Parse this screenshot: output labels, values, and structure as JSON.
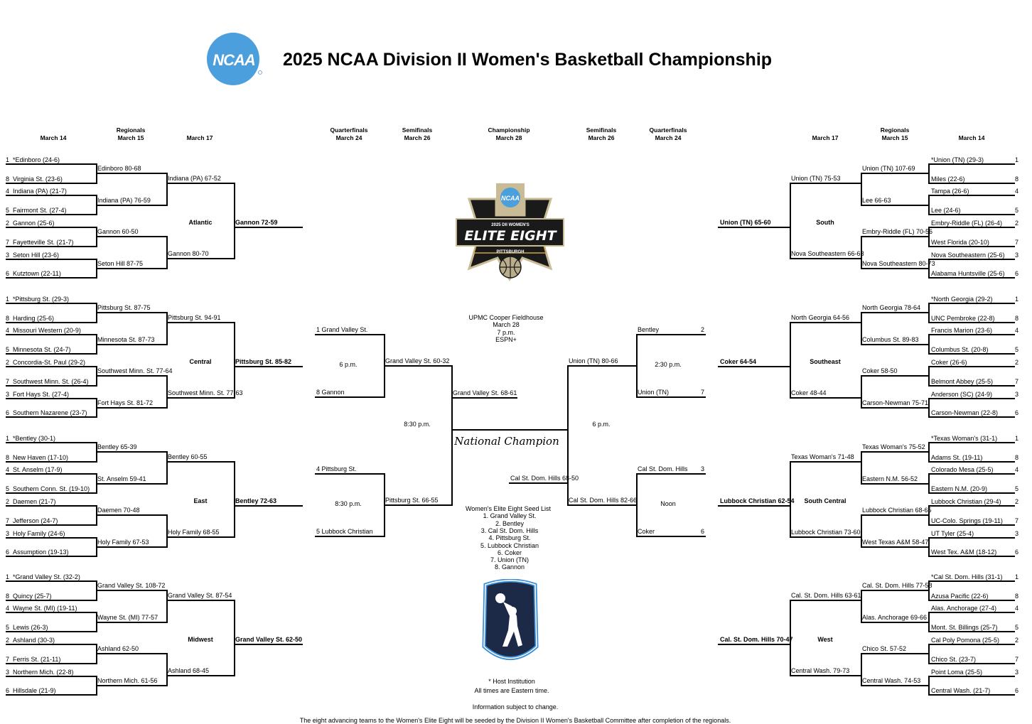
{
  "title": "2025 NCAA Division II Women's Basketball Championship",
  "logos": {
    "ncaa": "NCAA",
    "elite_eight": [
      "2025 DII WOMEN'S",
      "ELITE EIGHT",
      "PITTSBURGH"
    ],
    "colors": {
      "ncaa_blue": "#4a9fdc",
      "gold": "#c9a64b",
      "navy": "#1c2a48"
    }
  },
  "headers": {
    "left_r1": [
      "March 14"
    ],
    "left_r2": [
      "Regionals",
      "March 15"
    ],
    "left_r3": [
      "March 17"
    ],
    "left_qf": [
      "Quarterfinals",
      "March 24"
    ],
    "left_sf": [
      "Semifinals",
      "March 26"
    ],
    "final": [
      "Championship",
      "March 28"
    ],
    "right_sf": [
      "Semifinals",
      "March 26"
    ],
    "right_qf": [
      "Quarterfinals",
      "March 24"
    ],
    "right_r3": [
      "March 17"
    ],
    "right_r2": [
      "Regionals",
      "March 15"
    ],
    "right_r1": [
      "March 14"
    ]
  },
  "left_regions": [
    {
      "name": "Atlantic",
      "teams": [
        {
          "seed": "1",
          "name": "*Edinboro (24-6)"
        },
        {
          "seed": "8",
          "name": "Virginia St. (23-6)"
        },
        {
          "seed": "4",
          "name": "Indiana (PA) (21-7)"
        },
        {
          "seed": "5",
          "name": "Fairmont St. (27-4)"
        },
        {
          "seed": "2",
          "name": "Gannon (25-6)"
        },
        {
          "seed": "7",
          "name": "Fayetteville St. (21-7)"
        },
        {
          "seed": "3",
          "name": "Seton Hill (23-6)"
        },
        {
          "seed": "6",
          "name": "Kutztown (22-11)"
        }
      ],
      "r1": [
        "Edinboro 80-68",
        "Indiana (PA) 76-59",
        "Gannon 60-50",
        "Seton Hill 87-75"
      ],
      "r2": [
        "Indiana (PA) 67-52",
        "Gannon 80-70"
      ],
      "champ": "Gannon 72-59"
    },
    {
      "name": "Central",
      "teams": [
        {
          "seed": "1",
          "name": "*Pittsburg St. (29-3)"
        },
        {
          "seed": "8",
          "name": "Harding (25-6)"
        },
        {
          "seed": "4",
          "name": "Missouri Western (20-9)"
        },
        {
          "seed": "5",
          "name": "Minnesota St. (24-7)"
        },
        {
          "seed": "2",
          "name": "Concordia-St. Paul (29-2)"
        },
        {
          "seed": "7",
          "name": "Southwest Minn. St. (26-4)"
        },
        {
          "seed": "3",
          "name": "Fort Hays St. (27-4)"
        },
        {
          "seed": "6",
          "name": "Southern Nazarene (23-7)"
        }
      ],
      "r1": [
        "Pittsburg St. 87-75",
        "Minnesota St. 87-73",
        "Southwest Minn. St. 77-64",
        "Fort Hays St. 81-72"
      ],
      "r2": [
        "Pittsburg St. 94-91",
        "Southwest Minn. St. 77-63"
      ],
      "champ": "Pittsburg St. 85-82"
    },
    {
      "name": "East",
      "teams": [
        {
          "seed": "1",
          "name": "*Bentley (30-1)"
        },
        {
          "seed": "8",
          "name": "New Haven (17-10)"
        },
        {
          "seed": "4",
          "name": "St. Anselm (17-9)"
        },
        {
          "seed": "5",
          "name": "Southern Conn. St. (19-10)"
        },
        {
          "seed": "2",
          "name": "Daemen (21-7)"
        },
        {
          "seed": "7",
          "name": "Jefferson (24-7)"
        },
        {
          "seed": "3",
          "name": "Holy Family (24-6)"
        },
        {
          "seed": "6",
          "name": "Assumption (19-13)"
        }
      ],
      "r1": [
        "Bentley 65-39",
        "St. Anselm 59-41",
        "Daemen 70-48",
        "Holy Family 67-53"
      ],
      "r2": [
        "Bentley 60-55",
        "Holy Family 68-55"
      ],
      "champ": "Bentley 72-63"
    },
    {
      "name": "Midwest",
      "teams": [
        {
          "seed": "1",
          "name": "*Grand Valley St. (32-2)"
        },
        {
          "seed": "8",
          "name": "Quincy (25-7)"
        },
        {
          "seed": "4",
          "name": "Wayne St. (MI) (19-11)"
        },
        {
          "seed": "5",
          "name": "Lewis (26-3)"
        },
        {
          "seed": "2",
          "name": "Ashland (30-3)"
        },
        {
          "seed": "7",
          "name": "Ferris St. (21-11)"
        },
        {
          "seed": "3",
          "name": "Northern Mich. (22-8)"
        },
        {
          "seed": "6",
          "name": "Hillsdale (21-9)"
        }
      ],
      "r1": [
        "Grand Valley St. 108-72",
        "Wayne St. (MI) 77-57",
        "Ashland 62-50",
        "Northern Mich. 61-56"
      ],
      "r2": [
        "Grand Valley St. 87-54",
        "Ashland 68-45"
      ],
      "champ": "Grand Valley St. 62-50"
    }
  ],
  "right_regions": [
    {
      "name": "South",
      "teams": [
        {
          "seed": "1",
          "name": "*Union (TN) (29-3)"
        },
        {
          "seed": "8",
          "name": "Miles (22-6)"
        },
        {
          "seed": "4",
          "name": "Tampa (26-6)"
        },
        {
          "seed": "5",
          "name": "Lee (24-6)"
        },
        {
          "seed": "2",
          "name": "Embry-Riddle (FL) (26-4)"
        },
        {
          "seed": "7",
          "name": "West Florida (20-10)"
        },
        {
          "seed": "3",
          "name": "Nova Southeastern (25-6)"
        },
        {
          "seed": "6",
          "name": "Alabama Huntsville (25-6)"
        }
      ],
      "r1": [
        "Union (TN) 107-69",
        "Lee 66-63",
        "Embry-Riddle (FL) 70-56",
        "Nova Southeastern 80-73"
      ],
      "r2": [
        "Union (TN) 75-53",
        "Nova Southeastern 66-63"
      ],
      "champ": "Union (TN) 65-60"
    },
    {
      "name": "Southeast",
      "teams": [
        {
          "seed": "1",
          "name": "*North Georgia (29-2)"
        },
        {
          "seed": "8",
          "name": "UNC Pembroke (22-8)"
        },
        {
          "seed": "4",
          "name": "Francis Marion (23-6)"
        },
        {
          "seed": "5",
          "name": "Columbus St. (20-8)"
        },
        {
          "seed": "2",
          "name": "Coker (26-6)"
        },
        {
          "seed": "7",
          "name": "Belmont Abbey (25-5)"
        },
        {
          "seed": "3",
          "name": "Anderson (SC) (24-9)"
        },
        {
          "seed": "6",
          "name": "Carson-Newman (22-8)"
        }
      ],
      "r1": [
        "North Georgia 78-64",
        "Columbus St. 89-83",
        "Coker 58-50",
        "Carson-Newman 75-71"
      ],
      "r2": [
        "North Georgia 64-56",
        "Coker 48-44"
      ],
      "champ": "Coker 64-54"
    },
    {
      "name": "South Central",
      "teams": [
        {
          "seed": "1",
          "name": "*Texas Woman's (31-1)"
        },
        {
          "seed": "8",
          "name": "Adams St. (19-11)"
        },
        {
          "seed": "4",
          "name": "Colorado Mesa (25-5)"
        },
        {
          "seed": "5",
          "name": "Eastern N.M. (20-9)"
        },
        {
          "seed": "2",
          "name": "Lubbock Christian (29-4)"
        },
        {
          "seed": "7",
          "name": "UC-Colo. Springs (19-11)"
        },
        {
          "seed": "3",
          "name": "UT Tyler (25-4)"
        },
        {
          "seed": "6",
          "name": "West Tex. A&M (18-12)"
        }
      ],
      "r1": [
        "Texas Woman's 75-52",
        "Eastern N.M. 56-52",
        "Lubbock Christian 68-65",
        "West Texas A&M 58-47"
      ],
      "r2": [
        "Texas Woman's 71-48",
        "Lubbock Christian 73-60"
      ],
      "champ": "Lubbock Christian 62-54"
    },
    {
      "name": "West",
      "teams": [
        {
          "seed": "1",
          "name": "*Cal St. Dom. Hills (31-1)"
        },
        {
          "seed": "8",
          "name": "Azusa Pacific (22-6)"
        },
        {
          "seed": "4",
          "name": "Alas. Anchorage (27-4)"
        },
        {
          "seed": "5",
          "name": "Mont. St. Billings (25-7)"
        },
        {
          "seed": "2",
          "name": "Cal Poly Pomona (25-5)"
        },
        {
          "seed": "7",
          "name": "Chico St. (23-7)"
        },
        {
          "seed": "3",
          "name": "Point Loma (25-5)"
        },
        {
          "seed": "6",
          "name": "Central Wash. (21-7)"
        }
      ],
      "r1": [
        "Cal. St. Dom. Hills 77-58",
        "Alas. Anchorage 69-66",
        "Chico St. 57-52",
        "Central Wash. 74-53"
      ],
      "r2": [
        "Cal. St. Dom. Hills 63-61",
        "Central Wash. 79-73"
      ],
      "champ": "Cal. St. Dom. Hills 70-47"
    }
  ],
  "elite_eight": {
    "venue": [
      "UPMC Cooper Fieldhouse",
      "March 28",
      "7 p.m.",
      "ESPN+"
    ],
    "left_top": {
      "team1": "1 Grand Valley St.",
      "team2": "8 Gannon",
      "time": "6 p.m.",
      "winner": "Grand Valley St. 60-32"
    },
    "left_bottom": {
      "team1": "4 Pittsburg St.",
      "team2": "5 Lubbock Christian",
      "time": "8:30 p.m.",
      "winner": "Pittsburg St. 66-55"
    },
    "left_semi": {
      "time": "8:30 p.m.",
      "winner": "Grand Valley St. 68-61"
    },
    "right_top": {
      "team1": "Bentley",
      "seed1": "2",
      "team2": "Union (TN)",
      "seed2": "7",
      "time": "2:30 p.m.",
      "winner": "Union (TN) 80-66"
    },
    "right_bottom": {
      "team1": "Cal St. Dom. Hills",
      "seed1": "3",
      "team2": "Coker",
      "seed2": "6",
      "time": "Noon",
      "winner": "Cal St. Dom. Hills 82-66"
    },
    "right_semi": {
      "time": "6 p.m.",
      "winner": "Cal St. Dom. Hills 68-50"
    },
    "champion_label": "National Champion",
    "seed_list_title": "Women's Elite Eight Seed List",
    "seed_list": [
      "1. Grand Valley St.",
      "2. Bentley",
      "3. Cal St. Dom. Hills",
      "4. Pittsburg St.",
      "5. Lubbock Christian",
      "6. Coker",
      "7. Union (TN)",
      "8. Gannon"
    ]
  },
  "footer": {
    "host_note": "* Host Institution",
    "times_note": "All times are Eastern time.",
    "change_note": "Information subject to change.",
    "seeding_note": "The eight advancing teams to the Women's Elite Eight will be seeded by the Division II Women's Basketball Committee after completion of the regionals."
  }
}
